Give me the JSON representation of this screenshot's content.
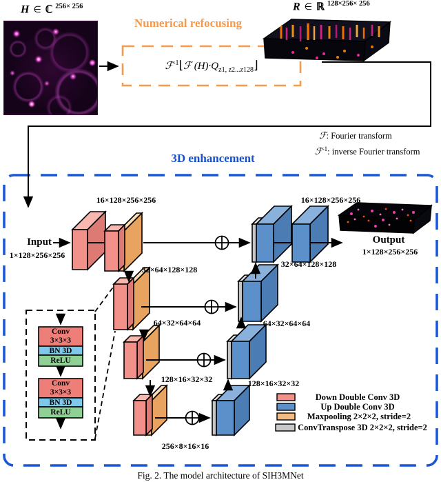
{
  "figure": {
    "caption": "Fig. 2. The model architecture of SIH3MNet"
  },
  "top": {
    "hologram_label": {
      "var": "H",
      "rel": "∈",
      "set": "ℂ",
      "sup": "256× 256"
    },
    "volume_label": {
      "var": "R",
      "rel": "∈",
      "set": "ℝ",
      "sup": "128×256× 256"
    },
    "refocus_title": "Numerical refocusing",
    "formula": {
      "f": "ℱ",
      "f_sup": "-1",
      "open": "⌊",
      "body": "ℱ (H)·Q",
      "sub": "z1, z2...z128",
      "close": "⌋"
    },
    "fourier_legend": {
      "f_sym": "ℱ",
      "f_sep": ":",
      "f_text": "Fourier transform",
      "finv_sym": "ℱ",
      "finv_sup": "-1",
      "finv_sep": ":",
      "finv_text": "inverse Fourier transform"
    }
  },
  "network": {
    "title": "3D enhancement",
    "input_label": "Input",
    "input_dims": "1×128×256×256",
    "output_label": "Output",
    "output_dims": "1×128×256×256",
    "enc1_dims": "16×128×256×256",
    "enc2_dims": "32×64×128×128",
    "enc3_dims": "64×32×64×64",
    "enc4_dims": "128×16×32×32",
    "bottleneck_dims": "256×8×16×16",
    "dec1_dims": "16×128×256×256",
    "dec2_dims": "32×64×128×128",
    "dec3_dims": "64×32×64×64",
    "dec4_dims": "128×16×32×32"
  },
  "conv_block": {
    "conv": "Conv",
    "kernel": "3×3×3",
    "bn": "BN 3D",
    "relu": "ReLU"
  },
  "legend": {
    "items": [
      {
        "label": "Down Double Conv 3D",
        "color": "#F2908A"
      },
      {
        "label": "Up Double Conv 3D",
        "color": "#5C90CB"
      },
      {
        "label": "Maxpooling 2×2×2, stride=2",
        "color": "#F5BA7F"
      },
      {
        "label": "ConvTranspose 3D 2×2×2, stride=2",
        "color": "#C8C8C8"
      }
    ]
  },
  "colors": {
    "refocus_title": "#F59A4A",
    "orange_box_border": "#F59B4D",
    "enhancement_title": "#1750C8",
    "blue_box_border": "#1857D6"
  }
}
